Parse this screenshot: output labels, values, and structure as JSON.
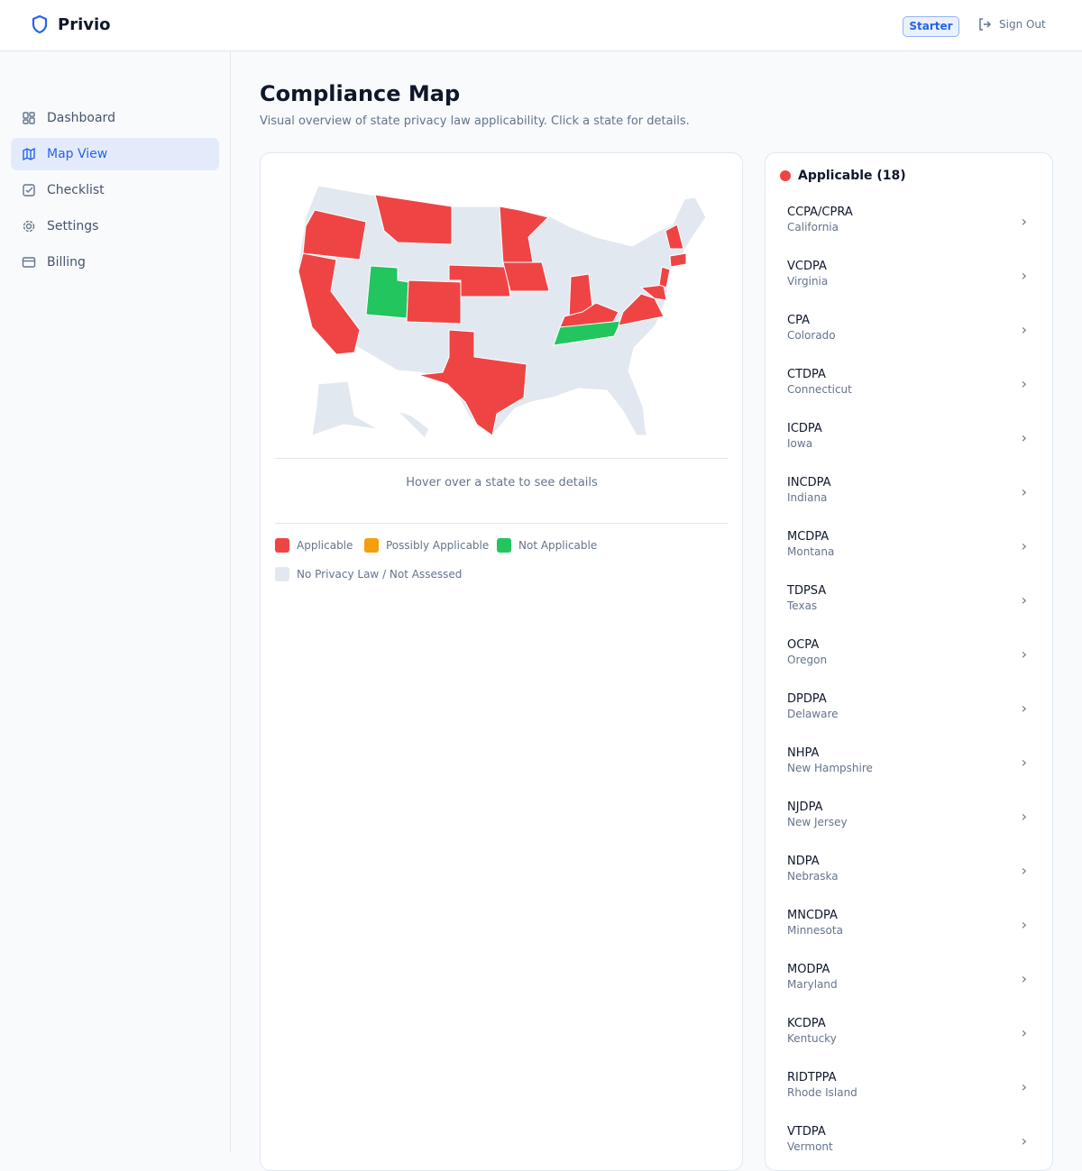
{
  "header": {
    "brand": "Privio",
    "plan": "Starter",
    "sign_out": "Sign Out"
  },
  "sidebar": {
    "items": [
      {
        "label": "Dashboard",
        "icon": "dashboard-icon"
      },
      {
        "label": "Map View",
        "icon": "map-icon",
        "active": true
      },
      {
        "label": "Checklist",
        "icon": "checklist-icon"
      },
      {
        "label": "Settings",
        "icon": "gear-icon"
      },
      {
        "label": "Billing",
        "icon": "credit-card-icon"
      }
    ]
  },
  "page": {
    "title": "Compliance Map",
    "subtitle": "Visual overview of state privacy law applicability. Click a state for details."
  },
  "map": {
    "hover_hint": "Hover over a state to see details",
    "colors": {
      "applicable": "#ef4444",
      "possibly": "#f59e0b",
      "not_applicable": "#22c55e",
      "none": "#e2e8f0"
    },
    "states": {
      "OR": "applicable",
      "CA": "applicable",
      "MT": "applicable",
      "UT": "not_applicable",
      "CO": "applicable",
      "NE": "applicable",
      "MN": "applicable",
      "IA": "applicable",
      "IN": "applicable",
      "KY": "applicable",
      "TN": "not_applicable",
      "TX": "applicable",
      "VA": "applicable",
      "MD": "applicable",
      "NJ": "applicable",
      "NH": "applicable",
      "CT": "applicable"
    },
    "legend": [
      "Applicable",
      "Possibly Applicable",
      "Not Applicable",
      "No Privacy Law / Not Assessed"
    ]
  },
  "list": {
    "title": "Applicable (18)",
    "items": [
      {
        "law": "CCPA/CPRA",
        "state": "California"
      },
      {
        "law": "VCDPA",
        "state": "Virginia"
      },
      {
        "law": "CPA",
        "state": "Colorado"
      },
      {
        "law": "CTDPA",
        "state": "Connecticut"
      },
      {
        "law": "ICDPA",
        "state": "Iowa"
      },
      {
        "law": "INCDPA",
        "state": "Indiana"
      },
      {
        "law": "MCDPA",
        "state": "Montana"
      },
      {
        "law": "TDPSA",
        "state": "Texas"
      },
      {
        "law": "OCPA",
        "state": "Oregon"
      },
      {
        "law": "DPDPA",
        "state": "Delaware"
      },
      {
        "law": "NHPA",
        "state": "New Hampshire"
      },
      {
        "law": "NJDPA",
        "state": "New Jersey"
      },
      {
        "law": "NDPA",
        "state": "Nebraska"
      },
      {
        "law": "MNCDPA",
        "state": "Minnesota"
      },
      {
        "law": "MODPA",
        "state": "Maryland"
      },
      {
        "law": "KCDPA",
        "state": "Kentucky"
      },
      {
        "law": "RIDTPPA",
        "state": "Rhode Island"
      },
      {
        "law": "VTDPA",
        "state": "Vermont"
      }
    ]
  }
}
